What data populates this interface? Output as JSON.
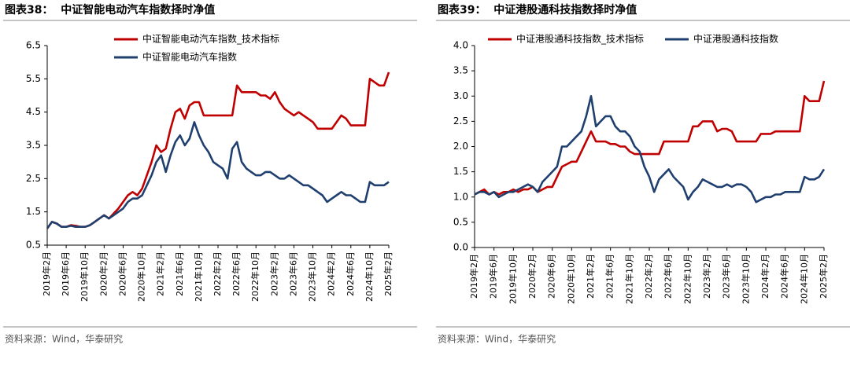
{
  "chart_data": [
    {
      "type": "line",
      "title": "图表38：  中证智能电动汽车指数择时净值",
      "source": "资料来源：Wind，华泰研究",
      "categories": [
        "2019年2月",
        null,
        null,
        null,
        "2019年6月",
        null,
        null,
        null,
        "2019年10月",
        null,
        null,
        null,
        "2020年2月",
        null,
        null,
        null,
        "2020年6月",
        null,
        null,
        null,
        "2020年10月",
        null,
        null,
        null,
        "2021年2月",
        null,
        null,
        null,
        "2021年6月",
        null,
        null,
        null,
        "2021年10月",
        null,
        null,
        null,
        "2022年2月",
        null,
        null,
        null,
        "2022年6月",
        null,
        null,
        null,
        "2022年10月",
        null,
        null,
        null,
        "2023年2月",
        null,
        null,
        null,
        "2023年6月",
        null,
        null,
        null,
        "2023年10月",
        null,
        null,
        null,
        "2024年2月",
        null,
        null,
        null,
        "2024年6月",
        null,
        null,
        null,
        "2024年10月",
        null,
        null,
        null,
        "2025年2月"
      ],
      "ylim": [
        0.5,
        6.5
      ],
      "yticks": [
        0.5,
        1.5,
        2.5,
        3.5,
        4.5,
        5.5,
        6.5
      ],
      "series": [
        {
          "name": "中证智能电动汽车指数_技术指标",
          "color": "#c00000",
          "values": [
            1.0,
            1.2,
            1.15,
            1.05,
            1.05,
            1.1,
            1.08,
            1.05,
            1.05,
            1.1,
            1.2,
            1.3,
            1.4,
            1.3,
            1.45,
            1.6,
            1.8,
            2.0,
            2.1,
            2.0,
            2.2,
            2.6,
            3.0,
            3.5,
            3.3,
            3.4,
            4.0,
            4.5,
            4.6,
            4.3,
            4.7,
            4.8,
            4.8,
            4.4,
            4.4,
            4.4,
            4.4,
            4.4,
            4.4,
            4.4,
            5.3,
            5.1,
            5.1,
            5.1,
            5.1,
            5.0,
            5.0,
            4.9,
            5.1,
            4.8,
            4.6,
            4.5,
            4.4,
            4.5,
            4.4,
            4.3,
            4.2,
            4.0,
            4.0,
            4.0,
            4.0,
            4.2,
            4.4,
            4.3,
            4.1,
            4.1,
            4.1,
            4.1,
            5.5,
            5.4,
            5.3,
            5.3,
            5.7
          ]
        },
        {
          "name": "中证智能电动汽车指数",
          "color": "#1f3f6e",
          "values": [
            1.0,
            1.2,
            1.15,
            1.05,
            1.05,
            1.08,
            1.05,
            1.05,
            1.05,
            1.1,
            1.2,
            1.3,
            1.4,
            1.3,
            1.4,
            1.5,
            1.6,
            1.8,
            1.9,
            1.9,
            2.0,
            2.3,
            2.6,
            3.0,
            3.2,
            2.7,
            3.2,
            3.6,
            3.8,
            3.5,
            3.7,
            4.2,
            3.8,
            3.5,
            3.3,
            3.0,
            2.9,
            2.8,
            2.5,
            3.4,
            3.6,
            3.0,
            2.8,
            2.7,
            2.6,
            2.6,
            2.7,
            2.7,
            2.6,
            2.5,
            2.5,
            2.6,
            2.5,
            2.4,
            2.3,
            2.3,
            2.2,
            2.1,
            2.0,
            1.8,
            1.9,
            2.0,
            2.1,
            2.0,
            2.0,
            1.9,
            1.8,
            1.8,
            2.4,
            2.3,
            2.3,
            2.3,
            2.4
          ]
        }
      ]
    },
    {
      "type": "line",
      "title": "图表39：  中证港股通科技指数择时净值",
      "source": "资料来源：Wind，华泰研究",
      "categories": [
        "2019年2月",
        null,
        null,
        null,
        "2019年6月",
        null,
        null,
        null,
        "2019年10月",
        null,
        null,
        null,
        "2020年2月",
        null,
        null,
        null,
        "2020年6月",
        null,
        null,
        null,
        "2020年10月",
        null,
        null,
        null,
        "2021年2月",
        null,
        null,
        null,
        "2021年6月",
        null,
        null,
        null,
        "2021年10月",
        null,
        null,
        null,
        "2022年2月",
        null,
        null,
        null,
        "2022年6月",
        null,
        null,
        null,
        "2022年10月",
        null,
        null,
        null,
        "2023年2月",
        null,
        null,
        null,
        "2023年6月",
        null,
        null,
        null,
        "2023年10月",
        null,
        null,
        null,
        "2024年2月",
        null,
        null,
        null,
        "2024年6月",
        null,
        null,
        null,
        "2024年10月",
        null,
        null,
        null,
        "2025年2月"
      ],
      "ylim": [
        0,
        4
      ],
      "yticks": [
        {
          "value": 0,
          "label": "0.0"
        },
        0.5,
        {
          "value": 1,
          "label": "1.0"
        },
        1.5,
        {
          "value": 2,
          "label": "2.0"
        },
        2.5,
        {
          "value": 3,
          "label": "3.0"
        },
        3.5,
        {
          "value": 4,
          "label": "4.0"
        }
      ],
      "series": [
        {
          "name": "中证港股通科技指数_技术指标",
          "color": "#c00000",
          "values": [
            1.05,
            1.1,
            1.15,
            1.05,
            1.1,
            1.05,
            1.1,
            1.1,
            1.15,
            1.1,
            1.15,
            1.15,
            1.2,
            1.1,
            1.15,
            1.2,
            1.2,
            1.4,
            1.6,
            1.65,
            1.7,
            1.7,
            1.9,
            2.1,
            2.3,
            2.1,
            2.1,
            2.1,
            2.05,
            2.05,
            2.0,
            2.0,
            1.9,
            1.85,
            1.85,
            1.85,
            1.85,
            1.85,
            1.85,
            2.1,
            2.1,
            2.1,
            2.1,
            2.1,
            2.1,
            2.4,
            2.4,
            2.5,
            2.5,
            2.5,
            2.3,
            2.35,
            2.35,
            2.3,
            2.1,
            2.1,
            2.1,
            2.1,
            2.1,
            2.25,
            2.25,
            2.25,
            2.3,
            2.3,
            2.3,
            2.3,
            2.3,
            2.3,
            3.0,
            2.9,
            2.9,
            2.9,
            3.3
          ]
        },
        {
          "name": "中证港股通科技指数",
          "color": "#1f3f6e",
          "values": [
            1.05,
            1.1,
            1.1,
            1.05,
            1.1,
            1.0,
            1.05,
            1.1,
            1.1,
            1.15,
            1.2,
            1.25,
            1.2,
            1.1,
            1.3,
            1.4,
            1.5,
            1.6,
            2.0,
            2.0,
            2.1,
            2.2,
            2.3,
            2.6,
            3.0,
            2.4,
            2.5,
            2.6,
            2.6,
            2.4,
            2.3,
            2.3,
            2.2,
            2.0,
            1.9,
            1.6,
            1.4,
            1.1,
            1.35,
            1.45,
            1.55,
            1.4,
            1.3,
            1.2,
            0.95,
            1.1,
            1.2,
            1.35,
            1.3,
            1.25,
            1.2,
            1.2,
            1.25,
            1.2,
            1.25,
            1.25,
            1.2,
            1.1,
            0.9,
            0.95,
            1.0,
            1.0,
            1.05,
            1.05,
            1.1,
            1.1,
            1.1,
            1.1,
            1.4,
            1.35,
            1.35,
            1.4,
            1.55
          ]
        }
      ]
    }
  ]
}
